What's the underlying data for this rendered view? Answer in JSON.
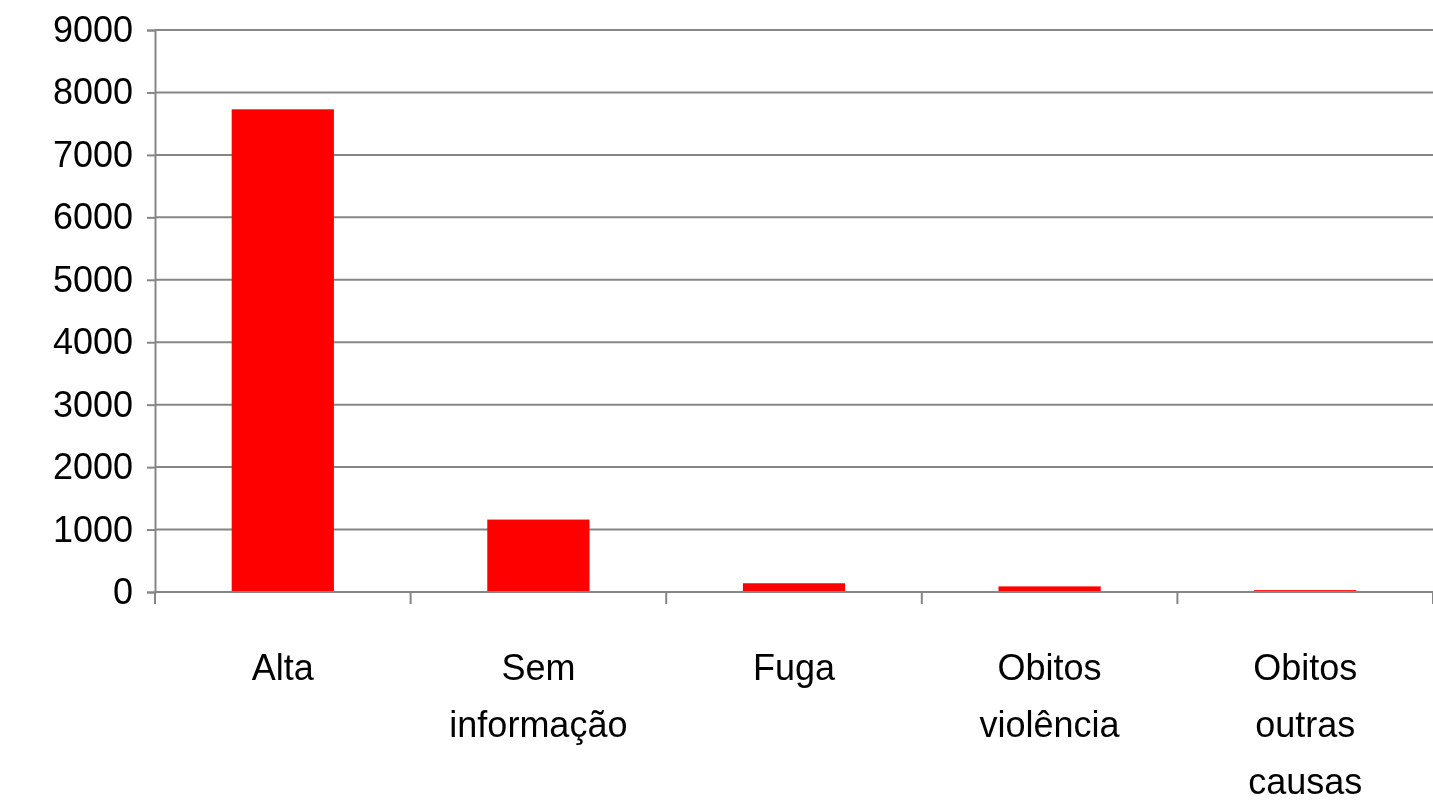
{
  "chart_data": {
    "type": "bar",
    "categories": [
      "Alta",
      "Sem informação",
      "Fuga",
      "Obitos violência",
      "Obitos outras causas"
    ],
    "values": [
      7730,
      1160,
      140,
      90,
      30
    ],
    "color": "#ff0000",
    "ylim": [
      0,
      9000
    ],
    "yticks": [
      0,
      1000,
      2000,
      3000,
      4000,
      5000,
      6000,
      7000,
      8000,
      9000
    ],
    "grid": "y"
  }
}
